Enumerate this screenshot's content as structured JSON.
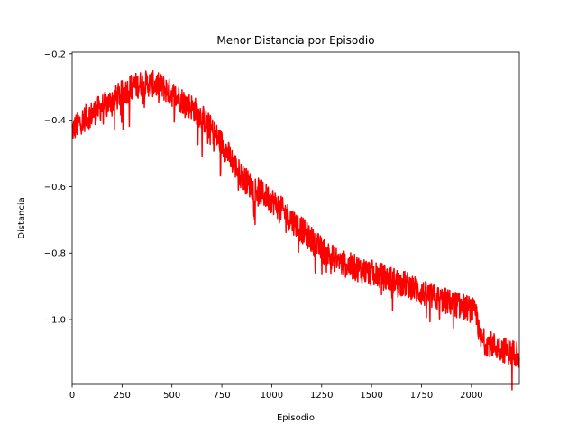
{
  "chart_data": {
    "type": "line",
    "title": "Menor Distancia por Episodio",
    "xlabel": "Episodio",
    "ylabel": "Distancia",
    "xlim": [
      0,
      2240
    ],
    "ylim": [
      -1.195,
      -0.195
    ],
    "xticks": [
      0,
      250,
      500,
      750,
      1000,
      1250,
      1500,
      1750,
      2000
    ],
    "xtick_labels": [
      "0",
      "250",
      "500",
      "750",
      "1000",
      "1250",
      "1500",
      "1750",
      "2000"
    ],
    "yticks": [
      -1.0,
      -0.8,
      -0.6,
      -0.4,
      -0.2
    ],
    "ytick_labels": [
      "−1.0",
      "−0.8",
      "−0.6",
      "−0.4",
      "−0.2"
    ],
    "grid": false,
    "legend": "none",
    "series": [
      {
        "color": "#ff0000",
        "x": [
          0,
          50,
          100,
          150,
          200,
          250,
          300,
          350,
          400,
          450,
          500,
          550,
          600,
          650,
          700,
          750,
          800,
          850,
          900,
          950,
          1000,
          1050,
          1100,
          1150,
          1200,
          1250,
          1300,
          1350,
          1400,
          1450,
          1500,
          1550,
          1600,
          1650,
          1700,
          1750,
          1800,
          1850,
          1900,
          1950,
          2000,
          2030,
          2040,
          2080,
          2120,
          2160,
          2200,
          2240
        ],
        "y": [
          -0.43,
          -0.4,
          -0.38,
          -0.36,
          -0.34,
          -0.32,
          -0.3,
          -0.29,
          -0.29,
          -0.3,
          -0.32,
          -0.34,
          -0.36,
          -0.39,
          -0.43,
          -0.47,
          -0.52,
          -0.57,
          -0.6,
          -0.62,
          -0.64,
          -0.67,
          -0.7,
          -0.73,
          -0.76,
          -0.79,
          -0.81,
          -0.83,
          -0.84,
          -0.85,
          -0.86,
          -0.87,
          -0.88,
          -0.89,
          -0.9,
          -0.92,
          -0.93,
          -0.94,
          -0.95,
          -0.96,
          -0.97,
          -0.99,
          -1.06,
          -1.07,
          -1.08,
          -1.09,
          -1.1,
          -1.1
        ],
        "noise_amplitude": 0.04
      }
    ]
  }
}
